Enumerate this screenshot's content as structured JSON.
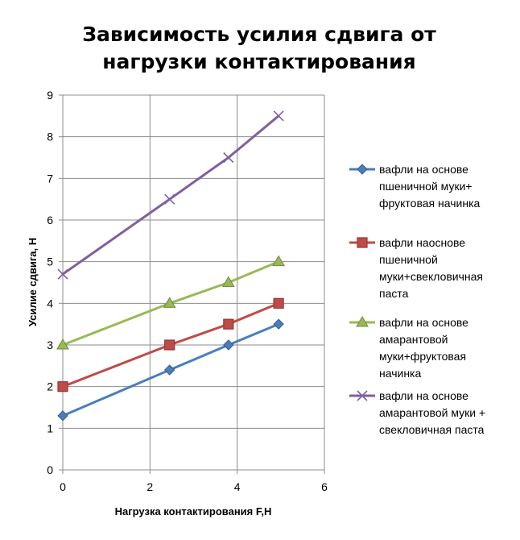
{
  "chart_data": {
    "type": "line",
    "title": [
      "Зависимость усилия сдвига от",
      "нагрузки контактирования"
    ],
    "xlabel": "Нагрузка контактирования  F,H",
    "ylabel": "Усилие сдвига, Н",
    "xlim": [
      0,
      6
    ],
    "ylim": [
      0,
      9
    ],
    "xticks": [
      0,
      2,
      4,
      6
    ],
    "yticks": [
      0,
      1,
      2,
      3,
      4,
      5,
      6,
      7,
      8,
      9
    ],
    "grid": true,
    "legend_position": "right",
    "series": [
      {
        "name": "вафли на основе пшеничной муки+ фруктовая начинка",
        "legend_lines": [
          "вафли на основе",
          "пшеничной муки+",
          "фруктовая начинка"
        ],
        "marker": "diamond",
        "color": "#4a7ebb",
        "x": [
          0,
          2.45,
          3.8,
          4.95
        ],
        "y": [
          1.3,
          2.4,
          3.0,
          3.5
        ]
      },
      {
        "name": "вафли наоснове пшеничной муки+свекловичная паста",
        "legend_lines": [
          "вафли наоснове",
          "пшеничной",
          "муки+свекловичная",
          "паста"
        ],
        "marker": "square",
        "color": "#be4b48",
        "x": [
          0,
          2.45,
          3.8,
          4.95
        ],
        "y": [
          2.0,
          3.0,
          3.5,
          4.0
        ]
      },
      {
        "name": "вафли на основе амарантовой муки+фруктовая начинка",
        "legend_lines": [
          "вафли на основе",
          "амарантовой",
          "муки+фруктовая",
          "начинка"
        ],
        "marker": "triangle",
        "color": "#98b954",
        "x": [
          0,
          2.45,
          3.8,
          4.95
        ],
        "y": [
          3.0,
          4.0,
          4.5,
          5.0
        ]
      },
      {
        "name": "вафли на основе амарантовой муки + свекловичная паста",
        "legend_lines": [
          "вафли на основе",
          "амарантовой муки +",
          "свекловичная паста"
        ],
        "marker": "x",
        "color": "#7d60a0",
        "x": [
          0,
          2.45,
          3.8,
          4.95
        ],
        "y": [
          4.7,
          6.5,
          7.5,
          8.5
        ]
      }
    ]
  }
}
